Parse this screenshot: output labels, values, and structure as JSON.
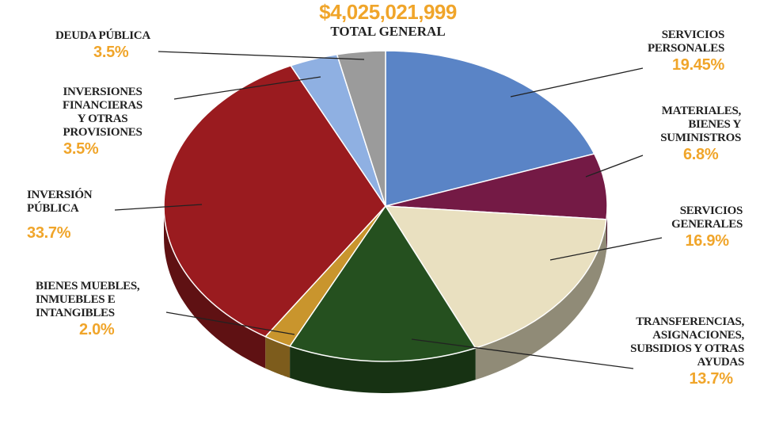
{
  "chart_data": {
    "type": "pie",
    "style": "3d",
    "title": "$4,025,021,999",
    "subtitle": "TOTAL GENERAL",
    "start_angle": "top",
    "direction": "clockwise",
    "slices": [
      {
        "label": "SERVICIOS\nPERSONALES",
        "value": 19.45,
        "pct_label": "19.45%",
        "color": "#5a84c6"
      },
      {
        "label": "MATERIALES,\nBIENES Y\nSUMINISTROS",
        "value": 6.8,
        "pct_label": "6.8%",
        "color": "#741a45"
      },
      {
        "label": "SERVICIOS\nGENERALES",
        "value": 16.9,
        "pct_label": "16.9%",
        "color": "#e9e0c0"
      },
      {
        "label": "TRANSFERENCIAS,\nASIGNACIONES,\nSUBSIDIOS Y OTRAS\nAYUDAS",
        "value": 13.7,
        "pct_label": "13.7%",
        "color": "#25501f"
      },
      {
        "label": "BIENES MUEBLES,\nINMUEBLES E\nINTANGIBLES",
        "value": 2.0,
        "pct_label": "2.0%",
        "color": "#c9952d"
      },
      {
        "label": "INVERSIÓN\nPÚBLICA",
        "value": 33.7,
        "pct_label": "33.7%",
        "color": "#9a1b1f"
      },
      {
        "label": "INVERSIONES\nFINANCIERAS\nY OTRAS\nPROVISIONES",
        "value": 3.5,
        "pct_label": "3.5%",
        "color": "#8fb0e2"
      },
      {
        "label": "DEUDA PÚBLICA",
        "value": 3.5,
        "pct_label": "3.5%",
        "color": "#9b9b9b"
      }
    ]
  }
}
